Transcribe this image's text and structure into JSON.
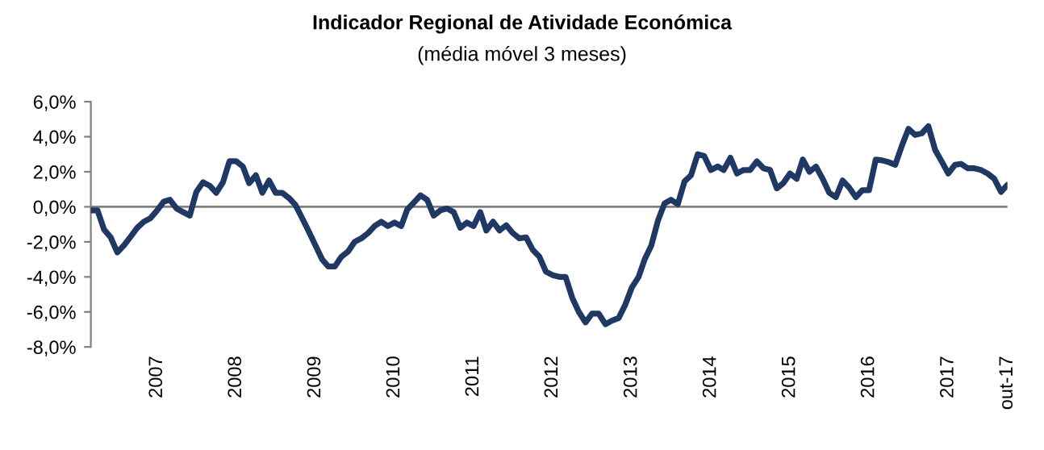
{
  "chart_data": {
    "type": "line",
    "title": "Indicador Regional de Atividade Económica",
    "subtitle": "(média móvel 3 meses)",
    "x": [
      "2006-03",
      "2006-04",
      "2006-05",
      "2006-06",
      "2006-07",
      "2006-08",
      "2006-09",
      "2006-10",
      "2006-11",
      "2006-12",
      "2007-01",
      "2007-02",
      "2007-03",
      "2007-04",
      "2007-05",
      "2007-06",
      "2007-07",
      "2007-08",
      "2007-09",
      "2007-10",
      "2007-11",
      "2007-12",
      "2008-01",
      "2008-02",
      "2008-03",
      "2008-04",
      "2008-05",
      "2008-06",
      "2008-07",
      "2008-08",
      "2008-09",
      "2008-10",
      "2008-11",
      "2008-12",
      "2009-01",
      "2009-02",
      "2009-03",
      "2009-04",
      "2009-05",
      "2009-06",
      "2009-07",
      "2009-08",
      "2009-09",
      "2009-10",
      "2009-11",
      "2009-12",
      "2010-01",
      "2010-02",
      "2010-03",
      "2010-04",
      "2010-05",
      "2010-06",
      "2010-07",
      "2010-08",
      "2010-09",
      "2010-10",
      "2010-11",
      "2010-12",
      "2011-01",
      "2011-02",
      "2011-03",
      "2011-04",
      "2011-05",
      "2011-06",
      "2011-07",
      "2011-08",
      "2011-09",
      "2011-10",
      "2011-11",
      "2011-12",
      "2012-01",
      "2012-02",
      "2012-03",
      "2012-04",
      "2012-05",
      "2012-06",
      "2012-07",
      "2012-08",
      "2012-09",
      "2012-10",
      "2012-11",
      "2012-12",
      "2013-01",
      "2013-02",
      "2013-03",
      "2013-04",
      "2013-05",
      "2013-06",
      "2013-07",
      "2013-08",
      "2013-09",
      "2013-10",
      "2013-11",
      "2013-12",
      "2014-01",
      "2014-02",
      "2014-03",
      "2014-04",
      "2014-05",
      "2014-06",
      "2014-07",
      "2014-08",
      "2014-09",
      "2014-10",
      "2014-11",
      "2014-12",
      "2015-01",
      "2015-02",
      "2015-03",
      "2015-04",
      "2015-05",
      "2015-06",
      "2015-07",
      "2015-08",
      "2015-09",
      "2015-10",
      "2015-11",
      "2015-12",
      "2016-01",
      "2016-02",
      "2016-03",
      "2016-04",
      "2016-05",
      "2016-06",
      "2016-07",
      "2016-08",
      "2016-09",
      "2016-10",
      "2016-11",
      "2016-12",
      "2017-01",
      "2017-02",
      "2017-03",
      "2017-04",
      "2017-05",
      "2017-06",
      "2017-07",
      "2017-08",
      "2017-09",
      "2017-10"
    ],
    "series": [
      {
        "color": "#203864",
        "values": [
          -0.2,
          -0.2,
          -1.3,
          -1.75,
          -2.6,
          -2.2,
          -1.7,
          -1.2,
          -0.85,
          -0.65,
          -0.2,
          0.3,
          0.4,
          -0.1,
          -0.3,
          -0.5,
          0.85,
          1.4,
          1.2,
          0.8,
          1.4,
          2.6,
          2.6,
          2.3,
          1.35,
          1.8,
          0.8,
          1.5,
          0.8,
          0.8,
          0.5,
          0.1,
          -0.65,
          -1.4,
          -2.2,
          -3.0,
          -3.4,
          -3.4,
          -2.85,
          -2.55,
          -2.0,
          -1.8,
          -1.5,
          -1.1,
          -0.85,
          -1.1,
          -0.9,
          -1.1,
          -0.15,
          0.25,
          0.65,
          0.4,
          -0.5,
          -0.2,
          -0.1,
          -0.3,
          -1.2,
          -0.9,
          -1.1,
          -0.3,
          -1.35,
          -0.85,
          -1.35,
          -1.05,
          -1.5,
          -1.8,
          -1.75,
          -2.45,
          -2.85,
          -3.7,
          -3.9,
          -4.0,
          -4.0,
          -5.2,
          -6.0,
          -6.6,
          -6.1,
          -6.1,
          -6.7,
          -6.5,
          -6.35,
          -5.6,
          -4.6,
          -4.0,
          -3.0,
          -2.2,
          -0.8,
          0.2,
          0.4,
          0.15,
          1.45,
          1.8,
          3.0,
          2.9,
          2.1,
          2.3,
          2.1,
          2.8,
          1.9,
          2.1,
          2.1,
          2.6,
          2.2,
          2.1,
          1.05,
          1.35,
          1.9,
          1.6,
          2.7,
          2.0,
          2.3,
          1.6,
          0.8,
          0.55,
          1.5,
          1.1,
          0.55,
          0.95,
          0.95,
          2.7,
          2.65,
          2.55,
          2.4,
          3.5,
          4.45,
          4.1,
          4.2,
          4.6,
          3.25,
          2.6,
          1.9,
          2.4,
          2.45,
          2.2,
          2.2,
          2.1,
          1.9,
          1.6,
          0.85,
          1.25
        ]
      }
    ],
    "xlim": [
      "2006-03",
      "2017-10"
    ],
    "xticks": [
      {
        "value": "2007-01",
        "label": "2007"
      },
      {
        "value": "2008-01",
        "label": "2008"
      },
      {
        "value": "2009-01",
        "label": "2009"
      },
      {
        "value": "2010-01",
        "label": "2010"
      },
      {
        "value": "2011-01",
        "label": "2011"
      },
      {
        "value": "2012-01",
        "label": "2012"
      },
      {
        "value": "2013-01",
        "label": "2013"
      },
      {
        "value": "2014-01",
        "label": "2014"
      },
      {
        "value": "2015-01",
        "label": "2015"
      },
      {
        "value": "2016-01",
        "label": "2016"
      },
      {
        "value": "2017-01",
        "label": "2017"
      },
      {
        "value": "2017-10",
        "label": "out-17"
      }
    ],
    "ylim": [
      -8,
      6
    ],
    "yticks": [
      {
        "value": -8,
        "label": "-8,0%"
      },
      {
        "value": -6,
        "label": "-6,0%"
      },
      {
        "value": -4,
        "label": "-4,0%"
      },
      {
        "value": -2,
        "label": "-2,0%"
      },
      {
        "value": 0,
        "label": "0,0%"
      },
      {
        "value": 2,
        "label": "2,0%"
      },
      {
        "value": 4,
        "label": "4,0%"
      },
      {
        "value": 6,
        "label": "6,0%"
      }
    ],
    "ref_lines": [
      {
        "axis": "y",
        "value": 0,
        "color": "#808080"
      }
    ],
    "grid": false,
    "legend": false,
    "marker": "none",
    "line_style": "solid"
  }
}
